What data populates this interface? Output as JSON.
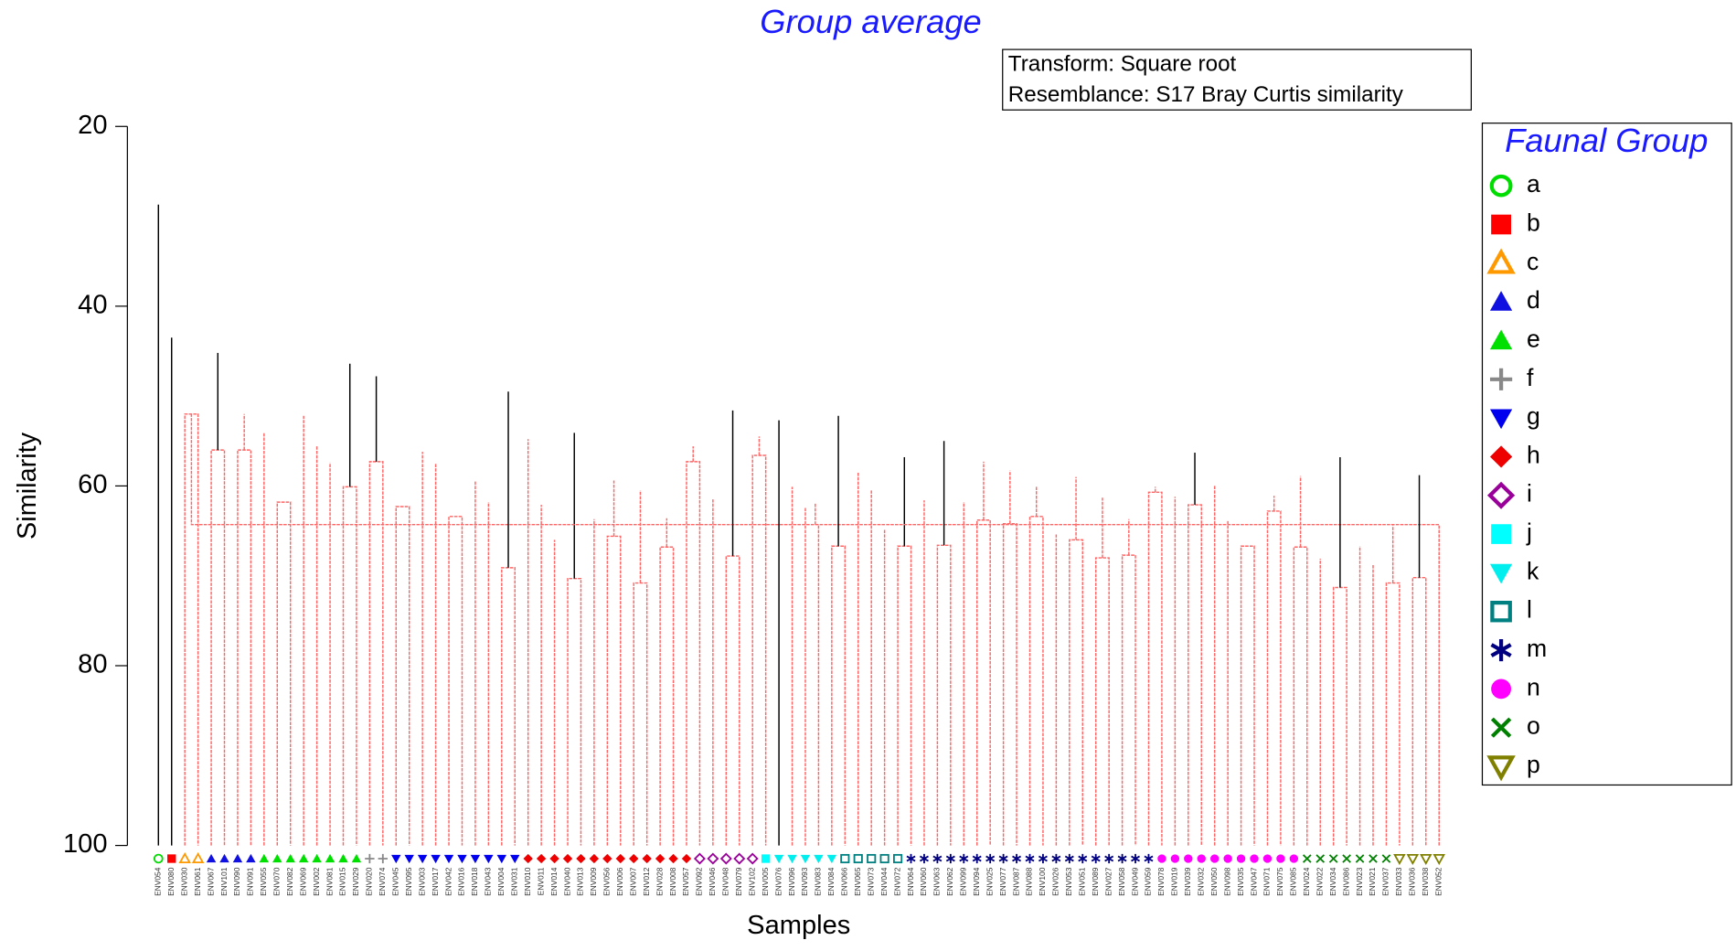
{
  "chart_data": {
    "type": "dendrogram",
    "title": "Group average",
    "info_lines": [
      "Transform: Square root",
      "Resemblance: S17 Bray Curtis similarity"
    ],
    "ylabel": "Similarity",
    "xlabel": "Samples",
    "ylim": [
      100,
      20
    ],
    "yticks": [
      20,
      40,
      60,
      80,
      100
    ],
    "legend_title": "Faunal Group",
    "groups": [
      {
        "name": "a",
        "symbol": "circle-open",
        "color": "#00dd00"
      },
      {
        "name": "b",
        "symbol": "square",
        "color": "#ff0000"
      },
      {
        "name": "c",
        "symbol": "triangle-open",
        "color": "#ff9900"
      },
      {
        "name": "d",
        "symbol": "triangle",
        "color": "#1010e0"
      },
      {
        "name": "e",
        "symbol": "triangle",
        "color": "#00e000"
      },
      {
        "name": "f",
        "symbol": "plus",
        "color": "#888888"
      },
      {
        "name": "g",
        "symbol": "triangle-down",
        "color": "#0000ee"
      },
      {
        "name": "h",
        "symbol": "diamond",
        "color": "#ee0000"
      },
      {
        "name": "i",
        "symbol": "diamond-open",
        "color": "#990099"
      },
      {
        "name": "j",
        "symbol": "square",
        "color": "#00ffff"
      },
      {
        "name": "k",
        "symbol": "triangle-down",
        "color": "#00eeee"
      },
      {
        "name": "l",
        "symbol": "square-open",
        "color": "#008080"
      },
      {
        "name": "m",
        "symbol": "asterisk",
        "color": "#000080"
      },
      {
        "name": "n",
        "symbol": "circle",
        "color": "#ff00ff"
      },
      {
        "name": "o",
        "symbol": "x",
        "color": "#008000"
      },
      {
        "name": "p",
        "symbol": "triangle-down-open",
        "color": "#808000"
      }
    ],
    "leaves": [
      {
        "label": "ENV054",
        "group": 0
      },
      {
        "label": "ENV080",
        "group": 1
      },
      {
        "label": "ENV030",
        "group": 2
      },
      {
        "label": "ENV061",
        "group": 2
      },
      {
        "label": "ENV067",
        "group": 3
      },
      {
        "label": "ENV101",
        "group": 3
      },
      {
        "label": "ENV090",
        "group": 3
      },
      {
        "label": "ENV091",
        "group": 3
      },
      {
        "label": "ENV055",
        "group": 4
      },
      {
        "label": "ENV070",
        "group": 4
      },
      {
        "label": "ENV082",
        "group": 4
      },
      {
        "label": "ENV069",
        "group": 4
      },
      {
        "label": "ENV002",
        "group": 4
      },
      {
        "label": "ENV081",
        "group": 4
      },
      {
        "label": "ENV015",
        "group": 4
      },
      {
        "label": "ENV029",
        "group": 4
      },
      {
        "label": "ENV020",
        "group": 5
      },
      {
        "label": "ENV074",
        "group": 5
      },
      {
        "label": "ENV045",
        "group": 6
      },
      {
        "label": "ENV095",
        "group": 6
      },
      {
        "label": "ENV003",
        "group": 6
      },
      {
        "label": "ENV017",
        "group": 6
      },
      {
        "label": "ENV042",
        "group": 6
      },
      {
        "label": "ENV016",
        "group": 6
      },
      {
        "label": "ENV018",
        "group": 6
      },
      {
        "label": "ENV043",
        "group": 6
      },
      {
        "label": "ENV004",
        "group": 6
      },
      {
        "label": "ENV031",
        "group": 6
      },
      {
        "label": "ENV010",
        "group": 7
      },
      {
        "label": "ENV011",
        "group": 7
      },
      {
        "label": "ENV014",
        "group": 7
      },
      {
        "label": "ENV040",
        "group": 7
      },
      {
        "label": "ENV013",
        "group": 7
      },
      {
        "label": "ENV009",
        "group": 7
      },
      {
        "label": "ENV056",
        "group": 7
      },
      {
        "label": "ENV006",
        "group": 7
      },
      {
        "label": "ENV007",
        "group": 7
      },
      {
        "label": "ENV012",
        "group": 7
      },
      {
        "label": "ENV028",
        "group": 7
      },
      {
        "label": "ENV008",
        "group": 7
      },
      {
        "label": "ENV057",
        "group": 7
      },
      {
        "label": "ENV092",
        "group": 8
      },
      {
        "label": "ENV046",
        "group": 8
      },
      {
        "label": "ENV048",
        "group": 8
      },
      {
        "label": "ENV079",
        "group": 8
      },
      {
        "label": "ENV102",
        "group": 8
      },
      {
        "label": "ENV005",
        "group": 9
      },
      {
        "label": "ENV076",
        "group": 10
      },
      {
        "label": "ENV096",
        "group": 10
      },
      {
        "label": "ENV093",
        "group": 10
      },
      {
        "label": "ENV083",
        "group": 10
      },
      {
        "label": "ENV084",
        "group": 10
      },
      {
        "label": "ENV066",
        "group": 11
      },
      {
        "label": "ENV065",
        "group": 11
      },
      {
        "label": "ENV073",
        "group": 11
      },
      {
        "label": "ENV044",
        "group": 11
      },
      {
        "label": "ENV072",
        "group": 11
      },
      {
        "label": "ENV064",
        "group": 12
      },
      {
        "label": "ENV060",
        "group": 12
      },
      {
        "label": "ENV063",
        "group": 12
      },
      {
        "label": "ENV062",
        "group": 12
      },
      {
        "label": "ENV099",
        "group": 12
      },
      {
        "label": "ENV094",
        "group": 12
      },
      {
        "label": "ENV025",
        "group": 12
      },
      {
        "label": "ENV077",
        "group": 12
      },
      {
        "label": "ENV087",
        "group": 12
      },
      {
        "label": "ENV088",
        "group": 12
      },
      {
        "label": "ENV100",
        "group": 12
      },
      {
        "label": "ENV026",
        "group": 12
      },
      {
        "label": "ENV053",
        "group": 12
      },
      {
        "label": "ENV051",
        "group": 12
      },
      {
        "label": "ENV089",
        "group": 12
      },
      {
        "label": "ENV027",
        "group": 12
      },
      {
        "label": "ENV058",
        "group": 12
      },
      {
        "label": "ENV049",
        "group": 12
      },
      {
        "label": "ENV059",
        "group": 12
      },
      {
        "label": "ENV078",
        "group": 13
      },
      {
        "label": "ENV019",
        "group": 13
      },
      {
        "label": "ENV039",
        "group": 13
      },
      {
        "label": "ENV032",
        "group": 13
      },
      {
        "label": "ENV050",
        "group": 13
      },
      {
        "label": "ENV098",
        "group": 13
      },
      {
        "label": "ENV035",
        "group": 13
      },
      {
        "label": "ENV047",
        "group": 13
      },
      {
        "label": "ENV071",
        "group": 13
      },
      {
        "label": "ENV075",
        "group": 13
      },
      {
        "label": "ENV085",
        "group": 13
      },
      {
        "label": "ENV024",
        "group": 14
      },
      {
        "label": "ENV022",
        "group": 14
      },
      {
        "label": "ENV034",
        "group": 14
      },
      {
        "label": "ENV086",
        "group": 14
      },
      {
        "label": "ENV023",
        "group": 14
      },
      {
        "label": "ENV021",
        "group": 14
      },
      {
        "label": "ENV037",
        "group": 14
      },
      {
        "label": "ENV033",
        "group": 15
      },
      {
        "label": "ENV036",
        "group": 15
      },
      {
        "label": "ENV038",
        "group": 15
      },
      {
        "label": "ENV052",
        "group": 15
      }
    ],
    "merges": [
      {
        "left": 2,
        "right": 3,
        "similarity": 52.0,
        "significant": false
      },
      {
        "left": 4,
        "right": 5,
        "similarity": 56.0,
        "significant": false
      },
      {
        "left": 6,
        "right": 7,
        "similarity": 56.0,
        "significant": false
      },
      {
        "left": 100,
        "right": 101,
        "similarity": 52.0,
        "significant": false
      },
      {
        "left": 14,
        "right": 15,
        "similarity": 60.1,
        "significant": false
      },
      {
        "left": 13,
        "right": 103,
        "similarity": 57.4,
        "significant": false
      },
      {
        "left": 12,
        "right": 104,
        "similarity": 55.5,
        "significant": false
      },
      {
        "left": 11,
        "right": 105,
        "similarity": 52.2,
        "significant": false
      },
      {
        "left": 9,
        "right": 10,
        "similarity": 61.8,
        "significant": false
      },
      {
        "left": 8,
        "right": 107,
        "similarity": 54.0,
        "significant": false
      },
      {
        "left": 108,
        "right": 106,
        "similarity": 49.5,
        "significant": false
      },
      {
        "left": 16,
        "right": 17,
        "similarity": 57.3,
        "significant": false
      },
      {
        "left": 26,
        "right": 27,
        "similarity": 69.1,
        "significant": false
      },
      {
        "left": 25,
        "right": 111,
        "similarity": 61.8,
        "significant": false
      },
      {
        "left": 24,
        "right": 112,
        "similarity": 59.4,
        "significant": false
      },
      {
        "left": 22,
        "right": 23,
        "similarity": 63.4,
        "significant": false
      },
      {
        "left": 114,
        "right": 113,
        "similarity": 58.5,
        "significant": false
      },
      {
        "left": 21,
        "right": 115,
        "similarity": 57.5,
        "significant": false
      },
      {
        "left": 20,
        "right": 116,
        "similarity": 56.2,
        "significant": false
      },
      {
        "left": 18,
        "right": 19,
        "similarity": 62.3,
        "significant": false
      },
      {
        "left": 118,
        "right": 117,
        "similarity": 55.2,
        "significant": false
      },
      {
        "left": 31,
        "right": 32,
        "similarity": 70.3,
        "significant": false
      },
      {
        "left": 30,
        "right": 120,
        "similarity": 66.0,
        "significant": false
      },
      {
        "left": 29,
        "right": 121,
        "similarity": 62.1,
        "significant": false
      },
      {
        "left": 34,
        "right": 35,
        "similarity": 65.6,
        "significant": false
      },
      {
        "left": 33,
        "right": 123,
        "similarity": 63.7,
        "significant": false
      },
      {
        "left": 36,
        "right": 37,
        "similarity": 70.8,
        "significant": false
      },
      {
        "left": 38,
        "right": 39,
        "similarity": 66.8,
        "significant": false
      },
      {
        "left": 125,
        "right": 126,
        "similarity": 63.6,
        "significant": false
      },
      {
        "left": 124,
        "right": 127,
        "similarity": 60.5,
        "significant": false
      },
      {
        "left": 122,
        "right": 128,
        "similarity": 59.4,
        "significant": false
      },
      {
        "left": 40,
        "right": 41,
        "similarity": 57.3,
        "significant": false
      },
      {
        "left": 129,
        "right": 130,
        "similarity": 55.6,
        "significant": false
      },
      {
        "left": 28,
        "right": 131,
        "similarity": 54.8,
        "significant": false
      },
      {
        "left": 119,
        "right": 132,
        "similarity": 54.1,
        "significant": true
      },
      {
        "left": 43,
        "right": 44,
        "similarity": 67.8,
        "significant": false
      },
      {
        "left": 42,
        "right": 134,
        "similarity": 61.5,
        "significant": false
      },
      {
        "left": 45,
        "right": 46,
        "similarity": 56.6,
        "significant": false
      },
      {
        "left": 135,
        "right": 136,
        "similarity": 54.5,
        "significant": false
      },
      {
        "left": 51,
        "right": 52,
        "similarity": 66.7,
        "significant": false
      },
      {
        "left": 50,
        "right": 138,
        "similarity": 64.3,
        "significant": false
      },
      {
        "left": 49,
        "right": 139,
        "similarity": 62.4,
        "significant": false
      },
      {
        "left": 48,
        "right": 140,
        "similarity": 60.1,
        "significant": false
      },
      {
        "left": 56,
        "right": 57,
        "similarity": 66.7,
        "significant": false
      },
      {
        "left": 55,
        "right": 142,
        "similarity": 64.8,
        "significant": false
      },
      {
        "left": 54,
        "right": 143,
        "similarity": 60.5,
        "significant": false
      },
      {
        "left": 53,
        "right": 144,
        "similarity": 58.5,
        "significant": false
      },
      {
        "left": 141,
        "right": 145,
        "similarity": 56.8,
        "significant": true
      },
      {
        "left": 59,
        "right": 60,
        "similarity": 66.6,
        "significant": false
      },
      {
        "left": 58,
        "right": 147,
        "similarity": 61.6,
        "significant": false
      },
      {
        "left": 62,
        "right": 63,
        "similarity": 63.8,
        "significant": false
      },
      {
        "left": 61,
        "right": 149,
        "similarity": 61.8,
        "significant": false
      },
      {
        "left": 64,
        "right": 65,
        "similarity": 64.2,
        "significant": false
      },
      {
        "left": 66,
        "right": 67,
        "similarity": 63.4,
        "significant": false
      },
      {
        "left": 151,
        "right": 152,
        "similarity": 60.0,
        "significant": false
      },
      {
        "left": 69,
        "right": 70,
        "similarity": 66.0,
        "significant": false
      },
      {
        "left": 68,
        "right": 154,
        "similarity": 65.4,
        "significant": false
      },
      {
        "left": 71,
        "right": 72,
        "similarity": 68.0,
        "significant": false
      },
      {
        "left": 73,
        "right": 74,
        "similarity": 67.7,
        "significant": false
      },
      {
        "left": 156,
        "right": 157,
        "similarity": 63.7,
        "significant": false
      },
      {
        "left": 155,
        "right": 158,
        "similarity": 61.3,
        "significant": false
      },
      {
        "left": 75,
        "right": 76,
        "similarity": 60.7,
        "significant": false
      },
      {
        "left": 159,
        "right": 160,
        "similarity": 60.1,
        "significant": false
      },
      {
        "left": 153,
        "right": 161,
        "similarity": 59.0,
        "significant": false
      },
      {
        "left": 150,
        "right": 162,
        "similarity": 58.3,
        "significant": false
      },
      {
        "left": 148,
        "right": 163,
        "similarity": 57.3,
        "significant": false
      },
      {
        "left": 78,
        "right": 79,
        "similarity": 62.1,
        "significant": false
      },
      {
        "left": 77,
        "right": 165,
        "similarity": 61.2,
        "significant": false
      },
      {
        "left": 86,
        "right": 87,
        "similarity": 66.8,
        "significant": false
      },
      {
        "left": 82,
        "right": 83,
        "similarity": 66.7,
        "significant": false
      },
      {
        "left": 81,
        "right": 168,
        "similarity": 63.8,
        "significant": false
      },
      {
        "left": 84,
        "right": 85,
        "similarity": 62.8,
        "significant": false
      },
      {
        "left": 170,
        "right": 167,
        "similarity": 62.0,
        "significant": false
      },
      {
        "left": 169,
        "right": 171,
        "similarity": 61.1,
        "significant": false
      },
      {
        "left": 80,
        "right": 172,
        "similarity": 59.9,
        "significant": false
      },
      {
        "left": 166,
        "right": 173,
        "similarity": 58.9,
        "significant": false
      },
      {
        "left": 89,
        "right": 90,
        "similarity": 71.3,
        "significant": false
      },
      {
        "left": 88,
        "right": 175,
        "similarity": 68.1,
        "significant": false
      },
      {
        "left": 93,
        "right": 94,
        "similarity": 70.8,
        "significant": false
      },
      {
        "left": 92,
        "right": 177,
        "similarity": 68.8,
        "significant": false
      },
      {
        "left": 91,
        "right": 178,
        "similarity": 66.7,
        "significant": false
      },
      {
        "left": 176,
        "right": 179,
        "similarity": 64.4,
        "significant": false
      },
      {
        "left": 95,
        "right": 96,
        "similarity": 70.2,
        "significant": false
      },
      {
        "left": 97,
        "right": 98,
        "similarity": 64.3,
        "significant": false
      },
      {
        "left": 181,
        "right": 182,
        "similarity": 61.9,
        "significant": false
      },
      {
        "left": 180,
        "right": 183,
        "similarity": 58.8,
        "significant": true
      },
      {
        "left": 174,
        "right": 184,
        "similarity": 56.8,
        "significant": true
      },
      {
        "left": 164,
        "right": 185,
        "similarity": 56.3,
        "significant": true
      },
      {
        "left": 146,
        "right": 186,
        "similarity": 55.0,
        "significant": true
      },
      {
        "left": 47,
        "right": 187,
        "similarity": 52.7,
        "significant": true
      },
      {
        "left": 137,
        "right": 188,
        "similarity": 52.2,
        "significant": true
      },
      {
        "left": 133,
        "right": 189,
        "similarity": 51.6,
        "significant": true
      },
      {
        "left": 110,
        "right": 190,
        "similarity": 49.5,
        "significant": true
      },
      {
        "left": 109,
        "right": 191,
        "similarity": 47.8,
        "significant": true
      },
      {
        "left": 102,
        "right": 192,
        "similarity": 46.4,
        "significant": true
      },
      {
        "left": 99,
        "right": 193,
        "similarity": 45.2,
        "significant": true
      },
      {
        "left": 1,
        "right": 194,
        "similarity": 43.5,
        "significant": true
      },
      {
        "left": 0,
        "right": 195,
        "similarity": 28.7,
        "significant": true
      }
    ]
  }
}
